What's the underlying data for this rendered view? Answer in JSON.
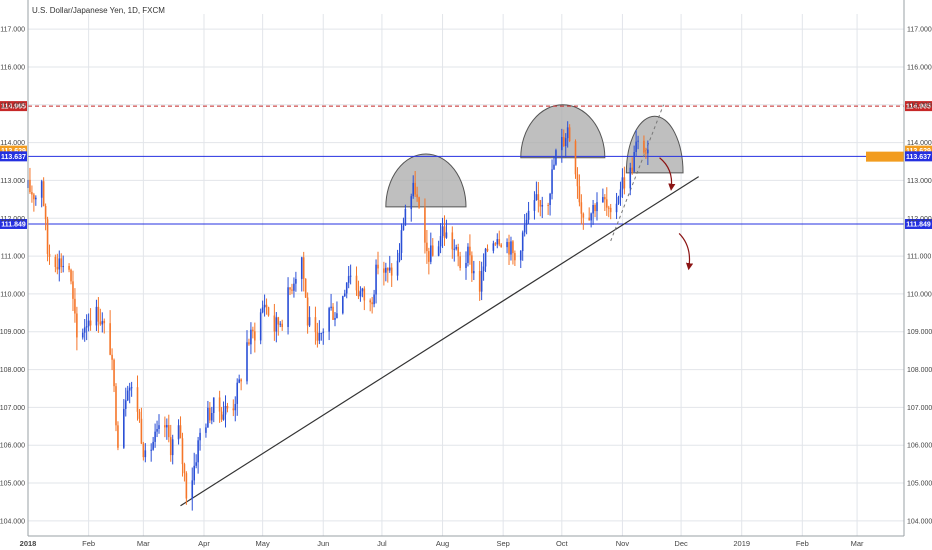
{
  "title": "U.S. Dollar/Japanese Yen, 1D, FXCM",
  "colors": {
    "up": "#2a4fd6",
    "down": "#f5762a",
    "grid": "#e2e5ea",
    "axis": "#9aa0a6",
    "resistance": "#c62828",
    "level": "#2430e0",
    "price": "#f29c1f",
    "trend": "#333333",
    "shape_fill": "#a9a9a9",
    "arrow": "#8b1414"
  },
  "chart_data": {
    "type": "candlestick",
    "instrument": "U.S. Dollar/Japanese Yen",
    "interval": "1D",
    "source": "FXCM",
    "ylim": [
      103.6,
      117.4
    ],
    "y_ticks": [
      "104.000",
      "105.000",
      "106.000",
      "107.000",
      "108.000",
      "109.000",
      "110.000",
      "111.000",
      "112.000",
      "113.000",
      "114.000",
      "115.000",
      "116.000",
      "117.000"
    ],
    "y_tick_values": [
      104,
      105,
      106,
      107,
      108,
      109,
      110,
      111,
      112,
      113,
      114,
      115,
      116,
      117
    ],
    "x_labels": [
      "2018",
      "Feb",
      "Mar",
      "Apr",
      "May",
      "Jun",
      "Jul",
      "Aug",
      "Sep",
      "Oct",
      "Nov",
      "Dec",
      "2019",
      "Feb",
      "Mar"
    ],
    "x_label_dates": [
      "2018-01-01",
      "2018-02-01",
      "2018-03-01",
      "2018-04-01",
      "2018-05-01",
      "2018-06-01",
      "2018-07-01",
      "2018-08-01",
      "2018-09-01",
      "2018-10-01",
      "2018-11-01",
      "2018-12-01",
      "2019-01-01",
      "2019-02-01",
      "2019-03-01"
    ],
    "x_range": [
      "2018-01-01",
      "2019-03-25"
    ],
    "levels": [
      {
        "name": "resistance",
        "value": 114.965,
        "label": "114.965",
        "style": "dashed",
        "color": "#c62828"
      },
      {
        "name": "current-price",
        "value": 113.629,
        "label": "113.629",
        "style": "badge",
        "color": "#f29c1f"
      },
      {
        "name": "upper-level",
        "value": 113.637,
        "label": "113.637",
        "style": "solid",
        "color": "#2430e0"
      },
      {
        "name": "lower-level",
        "value": 111.849,
        "label": "111.849",
        "style": "solid",
        "color": "#2430e0"
      }
    ],
    "trendline": {
      "from": [
        "2018-03-20",
        104.4
      ],
      "to": [
        "2018-12-10",
        113.1
      ]
    },
    "dashed_channel": {
      "from": [
        "2018-10-26",
        111.4
      ],
      "to": [
        "2018-11-22",
        115.0
      ]
    },
    "path": [
      [
        "2018-01-01",
        112.8
      ],
      [
        "2018-01-05",
        112.6
      ],
      [
        "2018-01-08",
        113.1
      ],
      [
        "2018-01-11",
        111.1
      ],
      [
        "2018-01-16",
        110.9
      ],
      [
        "2018-01-22",
        110.7
      ],
      [
        "2018-01-26",
        108.8
      ],
      [
        "2018-02-01",
        109.4
      ],
      [
        "2018-02-06",
        109.5
      ],
      [
        "2018-02-12",
        108.6
      ],
      [
        "2018-02-16",
        106.2
      ],
      [
        "2018-02-21",
        107.7
      ],
      [
        "2018-02-26",
        107.0
      ],
      [
        "2018-03-02",
        105.6
      ],
      [
        "2018-03-06",
        106.1
      ],
      [
        "2018-03-12",
        106.5
      ],
      [
        "2018-03-15",
        106.0
      ],
      [
        "2018-03-19",
        106.4
      ],
      [
        "2018-03-23",
        104.8
      ],
      [
        "2018-03-26",
        105.2
      ],
      [
        "2018-03-30",
        106.3
      ],
      [
        "2018-04-03",
        106.8
      ],
      [
        "2018-04-06",
        107.0
      ],
      [
        "2018-04-11",
        106.9
      ],
      [
        "2018-04-16",
        107.1
      ],
      [
        "2018-04-19",
        107.6
      ],
      [
        "2018-04-23",
        108.7
      ],
      [
        "2018-04-27",
        109.0
      ],
      [
        "2018-05-02",
        109.8
      ],
      [
        "2018-05-07",
        109.1
      ],
      [
        "2018-05-11",
        109.4
      ],
      [
        "2018-05-16",
        110.3
      ],
      [
        "2018-05-21",
        111.0
      ],
      [
        "2018-05-24",
        109.3
      ],
      [
        "2018-05-29",
        108.6
      ],
      [
        "2018-06-04",
        109.6
      ],
      [
        "2018-06-08",
        109.5
      ],
      [
        "2018-06-14",
        110.6
      ],
      [
        "2018-06-19",
        110.1
      ],
      [
        "2018-06-25",
        109.7
      ],
      [
        "2018-06-29",
        110.8
      ],
      [
        "2018-07-04",
        110.5
      ],
      [
        "2018-07-09",
        110.8
      ],
      [
        "2018-07-13",
        112.3
      ],
      [
        "2018-07-18",
        112.8
      ],
      [
        "2018-07-23",
        111.1
      ],
      [
        "2018-07-27",
        111.0
      ],
      [
        "2018-08-01",
        111.7
      ],
      [
        "2018-08-06",
        111.3
      ],
      [
        "2018-08-10",
        110.8
      ],
      [
        "2018-08-14",
        111.0
      ],
      [
        "2018-08-20",
        110.2
      ],
      [
        "2018-08-24",
        111.2
      ],
      [
        "2018-08-29",
        111.6
      ],
      [
        "2018-09-04",
        111.3
      ],
      [
        "2018-09-07",
        110.9
      ],
      [
        "2018-09-13",
        111.9
      ],
      [
        "2018-09-18",
        112.4
      ],
      [
        "2018-09-24",
        112.6
      ],
      [
        "2018-09-28",
        113.7
      ],
      [
        "2018-10-02",
        114.1
      ],
      [
        "2018-10-04",
        114.4
      ],
      [
        "2018-10-08",
        113.4
      ],
      [
        "2018-10-11",
        112.2
      ],
      [
        "2018-10-16",
        112.2
      ],
      [
        "2018-10-19",
        112.5
      ],
      [
        "2018-10-23",
        112.4
      ],
      [
        "2018-10-26",
        111.9
      ],
      [
        "2018-10-31",
        112.9
      ],
      [
        "2018-11-05",
        113.2
      ],
      [
        "2018-11-08",
        113.9
      ],
      [
        "2018-11-12",
        113.9
      ],
      [
        "2018-11-14",
        113.6
      ]
    ],
    "shapes": [
      {
        "name": "left-shoulder",
        "from": "2018-07-03",
        "to": "2018-08-13",
        "base": 112.3,
        "peak": 113.7
      },
      {
        "name": "head",
        "from": "2018-09-10",
        "to": "2018-10-23",
        "base": 113.6,
        "peak": 115.0
      },
      {
        "name": "right-shoulder",
        "from": "2018-11-03",
        "to": "2018-12-02",
        "base": 113.2,
        "peak": 114.7
      }
    ],
    "annotation_arrows": [
      {
        "name": "arrow-1",
        "from": [
          "2018-11-20",
          113.6
        ],
        "to": [
          "2018-11-26",
          112.8
        ]
      },
      {
        "name": "arrow-2",
        "from": [
          "2018-11-30",
          111.6
        ],
        "to": [
          "2018-12-05",
          110.7
        ]
      }
    ]
  }
}
